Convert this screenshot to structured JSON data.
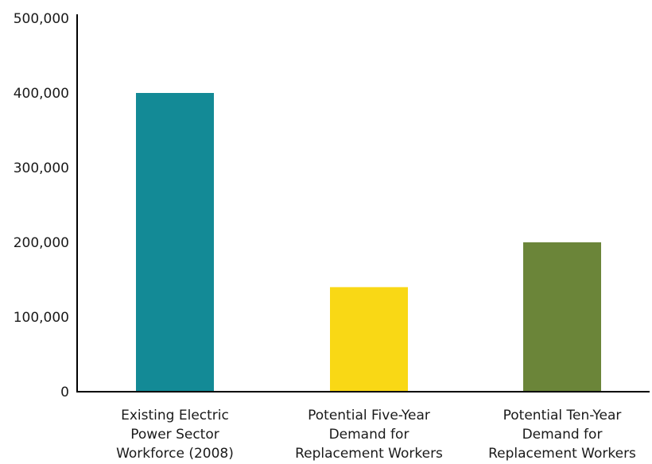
{
  "chart_data": {
    "type": "bar",
    "categories": [
      [
        "Existing Electric",
        "Power Sector",
        "Workforce (2008)"
      ],
      [
        "Potential Five-Year",
        "Demand for",
        "Replacement Workers"
      ],
      [
        "Potential Ten-Year",
        "Demand for",
        "Replacement Workers"
      ]
    ],
    "values": [
      400000,
      140000,
      200000
    ],
    "colors": [
      "#138a96",
      "#f9d815",
      "#6b8539"
    ],
    "ylim": [
      0,
      500000
    ],
    "yticks": [
      0,
      100000,
      200000,
      300000,
      400000,
      500000
    ],
    "ytick_labels": [
      "0",
      "100,000",
      "200,000",
      "300,000",
      "400,000",
      "500,000"
    ],
    "title": "",
    "xlabel": "",
    "ylabel": "",
    "grid": false,
    "legend": "none"
  }
}
